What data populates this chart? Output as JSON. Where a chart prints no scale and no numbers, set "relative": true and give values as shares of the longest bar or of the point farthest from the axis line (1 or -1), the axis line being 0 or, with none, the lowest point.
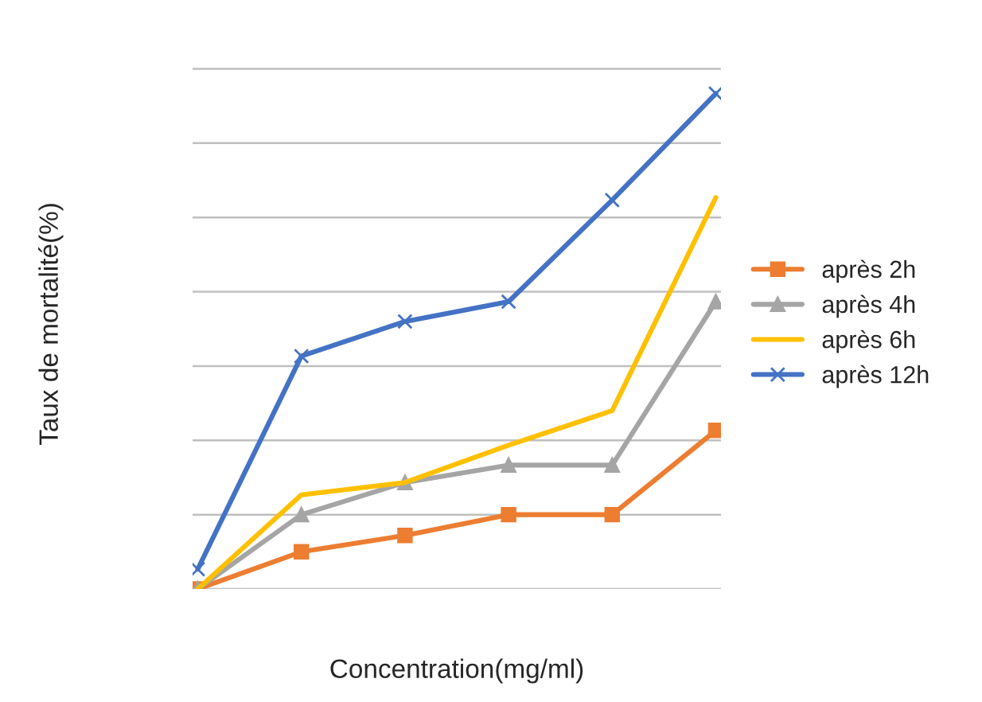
{
  "chart_data": {
    "type": "line",
    "relative": true,
    "xlabel": "Concentration(mg/ml)",
    "ylabel": "Taux de mortalité(%)",
    "categories": [
      null,
      null,
      null,
      null,
      null,
      null
    ],
    "grid": "y",
    "legend": "right",
    "series": [
      {
        "name": "après 2h",
        "color": "#ed7d31",
        "marker": "square",
        "values": [
          0,
          0.075,
          0.108,
          0.15,
          0.15,
          0.32
        ]
      },
      {
        "name": "après 4h",
        "color": "#a5a5a5",
        "marker": "triangle",
        "values": [
          0,
          0.15,
          0.215,
          0.25,
          0.25,
          0.58
        ]
      },
      {
        "name": "après 6h",
        "color": "#ffc000",
        "marker": "none",
        "values": [
          0,
          0.19,
          0.215,
          0.29,
          0.36,
          0.79
        ]
      },
      {
        "name": "après 12h",
        "color": "#4472c4",
        "marker": "cross",
        "values": [
          0.04,
          0.47,
          0.54,
          0.58,
          0.785,
          1
        ]
      }
    ]
  }
}
